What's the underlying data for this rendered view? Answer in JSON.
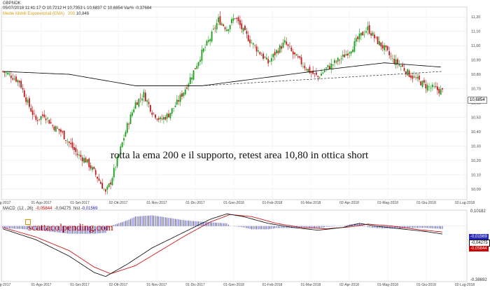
{
  "header": {
    "symbol": "GBPNOK",
    "date": "05/07/2018",
    "high_label": "H",
    "time": "11:41:17",
    "open": "O 10,7212",
    "high": "H 10,7353",
    "low": "L 10,6837",
    "close": "C 10,6854",
    "var": "Var% -0,37684",
    "ema_label": "Medie Mobili Esponenziali (EMA)",
    "ema_period": "200",
    "ema_value": "10,846"
  },
  "annotation": "rotta la ema 200 e il supporto, retest area 10,80 in ottica short",
  "watermark": "scattacolpending.com",
  "macd_header": {
    "label": "MACD",
    "params": "(12 , 26)",
    "v1": "-0,05844",
    "v2": "-0,04275",
    "hist_label": "hist",
    "v3": "-0,01569"
  },
  "price_labels": {
    "last": "10,6854"
  },
  "macd_labels": {
    "top": "0,10182",
    "a": "-0,01569",
    "b": "-0,04275",
    "c": "-0,05844",
    "bottom": "-0,38692"
  },
  "colors": {
    "candle_up": "#1a9e1a",
    "candle_down": "#c21a1a",
    "ema": "#000000",
    "macd_line": "#000000",
    "signal_line": "#cc0000",
    "histogram": "#2a2ab8",
    "watermark": "#c00000"
  },
  "chart_data": [
    {
      "type": "candlestick",
      "title": "GBPNOK",
      "ylim": [
        9.95,
        11.25
      ],
      "y_ticks": [
        "11,20",
        "11,10",
        "11,00",
        "10,90",
        "10,80",
        "10,70",
        "10,60",
        "10,50",
        "10,40",
        "10,30",
        "10,20",
        "10,10",
        "10,00"
      ],
      "y_tick_values": [
        11.2,
        11.1,
        11.0,
        10.9,
        10.8,
        10.7,
        10.6,
        10.5,
        10.4,
        10.3,
        10.2,
        10.1,
        10.0
      ],
      "x_ticks": [
        "...ug-2017",
        "01-Ago-2017",
        "01-Set-2017",
        "02-Ott-2017",
        "01-Nov-2017",
        "01-Dic-2017",
        "01-Gen-2018",
        "01-Feb-2018",
        "01-Mar-2018",
        "02-Apr-2018",
        "01-Mag-2018",
        "01-Giu-2018",
        "02-Lug-2018"
      ],
      "close_path": [
        [
          0,
          10.82
        ],
        [
          5,
          10.79
        ],
        [
          10,
          10.75
        ],
        [
          15,
          10.6
        ],
        [
          20,
          10.48
        ],
        [
          25,
          10.52
        ],
        [
          30,
          10.44
        ],
        [
          35,
          10.4
        ],
        [
          40,
          10.32
        ],
        [
          45,
          10.24
        ],
        [
          50,
          10.2
        ],
        [
          55,
          10.12
        ],
        [
          60,
          10.02
        ],
        [
          62,
          9.97
        ],
        [
          65,
          10.05
        ],
        [
          70,
          10.24
        ],
        [
          75,
          10.44
        ],
        [
          80,
          10.6
        ],
        [
          85,
          10.66
        ],
        [
          90,
          10.54
        ],
        [
          95,
          10.48
        ],
        [
          100,
          10.52
        ],
        [
          105,
          10.6
        ],
        [
          110,
          10.7
        ],
        [
          115,
          10.82
        ],
        [
          120,
          10.95
        ],
        [
          125,
          11.05
        ],
        [
          130,
          11.18
        ],
        [
          135,
          11.12
        ],
        [
          140,
          11.2
        ],
        [
          145,
          11.1
        ],
        [
          150,
          11.02
        ],
        [
          155,
          10.95
        ],
        [
          160,
          10.88
        ],
        [
          165,
          10.96
        ],
        [
          170,
          11.02
        ],
        [
          175,
          10.94
        ],
        [
          180,
          10.88
        ],
        [
          185,
          10.82
        ],
        [
          190,
          10.78
        ],
        [
          195,
          10.84
        ],
        [
          200,
          10.88
        ],
        [
          205,
          10.92
        ],
        [
          210,
          10.98
        ],
        [
          215,
          11.06
        ],
        [
          220,
          11.12
        ],
        [
          225,
          11.04
        ],
        [
          230,
          10.98
        ],
        [
          235,
          10.9
        ],
        [
          240,
          10.86
        ],
        [
          245,
          10.8
        ],
        [
          250,
          10.76
        ],
        [
          255,
          10.72
        ],
        [
          260,
          10.7
        ],
        [
          265,
          10.68
        ]
      ],
      "ema200": [
        [
          0,
          10.82
        ],
        [
          40,
          10.8
        ],
        [
          80,
          10.72
        ],
        [
          120,
          10.72
        ],
        [
          160,
          10.78
        ],
        [
          200,
          10.84
        ],
        [
          230,
          10.88
        ],
        [
          265,
          10.85
        ]
      ],
      "support_line": {
        "from": [
          120,
          10.72
        ],
        "to": [
          265,
          10.82
        ]
      },
      "last_value": 10.6854
    },
    {
      "type": "line",
      "title": "MACD",
      "ylim": [
        -0.38692,
        0.10182
      ],
      "series": [
        {
          "name": "MACD",
          "values": [
            [
              0,
              -0.02
            ],
            [
              20,
              -0.1
            ],
            [
              40,
              -0.22
            ],
            [
              55,
              -0.34
            ],
            [
              62,
              -0.37
            ],
            [
              75,
              -0.28
            ],
            [
              90,
              -0.16
            ],
            [
              110,
              -0.04
            ],
            [
              125,
              0.05
            ],
            [
              135,
              0.09
            ],
            [
              145,
              0.07
            ],
            [
              160,
              0.02
            ],
            [
              175,
              -0.01
            ],
            [
              190,
              -0.03
            ],
            [
              205,
              -0.01
            ],
            [
              215,
              0.02
            ],
            [
              225,
              0.0
            ],
            [
              240,
              -0.02
            ],
            [
              255,
              -0.04
            ],
            [
              265,
              -0.058
            ]
          ]
        },
        {
          "name": "Signal",
          "values": [
            [
              0,
              -0.01
            ],
            [
              20,
              -0.08
            ],
            [
              40,
              -0.18
            ],
            [
              55,
              -0.3
            ],
            [
              65,
              -0.35
            ],
            [
              80,
              -0.29
            ],
            [
              95,
              -0.18
            ],
            [
              110,
              -0.07
            ],
            [
              125,
              0.03
            ],
            [
              137,
              0.085
            ],
            [
              150,
              0.07
            ],
            [
              165,
              0.02
            ],
            [
              180,
              -0.01
            ],
            [
              195,
              -0.02
            ],
            [
              210,
              -0.005
            ],
            [
              220,
              0.015
            ],
            [
              235,
              0.0
            ],
            [
              250,
              -0.025
            ],
            [
              265,
              -0.043
            ]
          ]
        }
      ],
      "histogram_value": -0.01569
    }
  ]
}
